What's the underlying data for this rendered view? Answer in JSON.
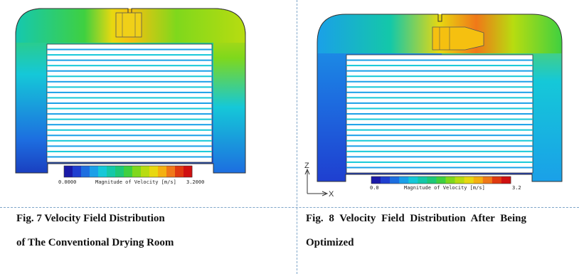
{
  "figures": [
    {
      "id": "fig7",
      "legend": {
        "min": "0.0000",
        "max": "3.2000",
        "label": "Magnitude of Velocity [m/s]"
      },
      "caption_line1": "Fig. 7 Velocity Field Distribution",
      "caption_line2": "of The Conventional Drying Room"
    },
    {
      "id": "fig8",
      "legend": {
        "min": "0.0",
        "max": "3.2",
        "label": "Magnitude of Velocity [m/s]"
      },
      "axes": {
        "z": "Z",
        "x": "X"
      },
      "caption_line1": "Fig. 8 Velocity Field Distribution After Being",
      "caption_line2": "Optimized"
    }
  ],
  "colors": {
    "scale": [
      "#1a1aa8",
      "#1f3fd0",
      "#1d6ee0",
      "#1aa0e8",
      "#15c8d8",
      "#14c8a8",
      "#1ec878",
      "#3fd040",
      "#7fd81c",
      "#b8dc10",
      "#e8d810",
      "#f5b010",
      "#f07818",
      "#e03a10",
      "#d01010"
    ]
  }
}
